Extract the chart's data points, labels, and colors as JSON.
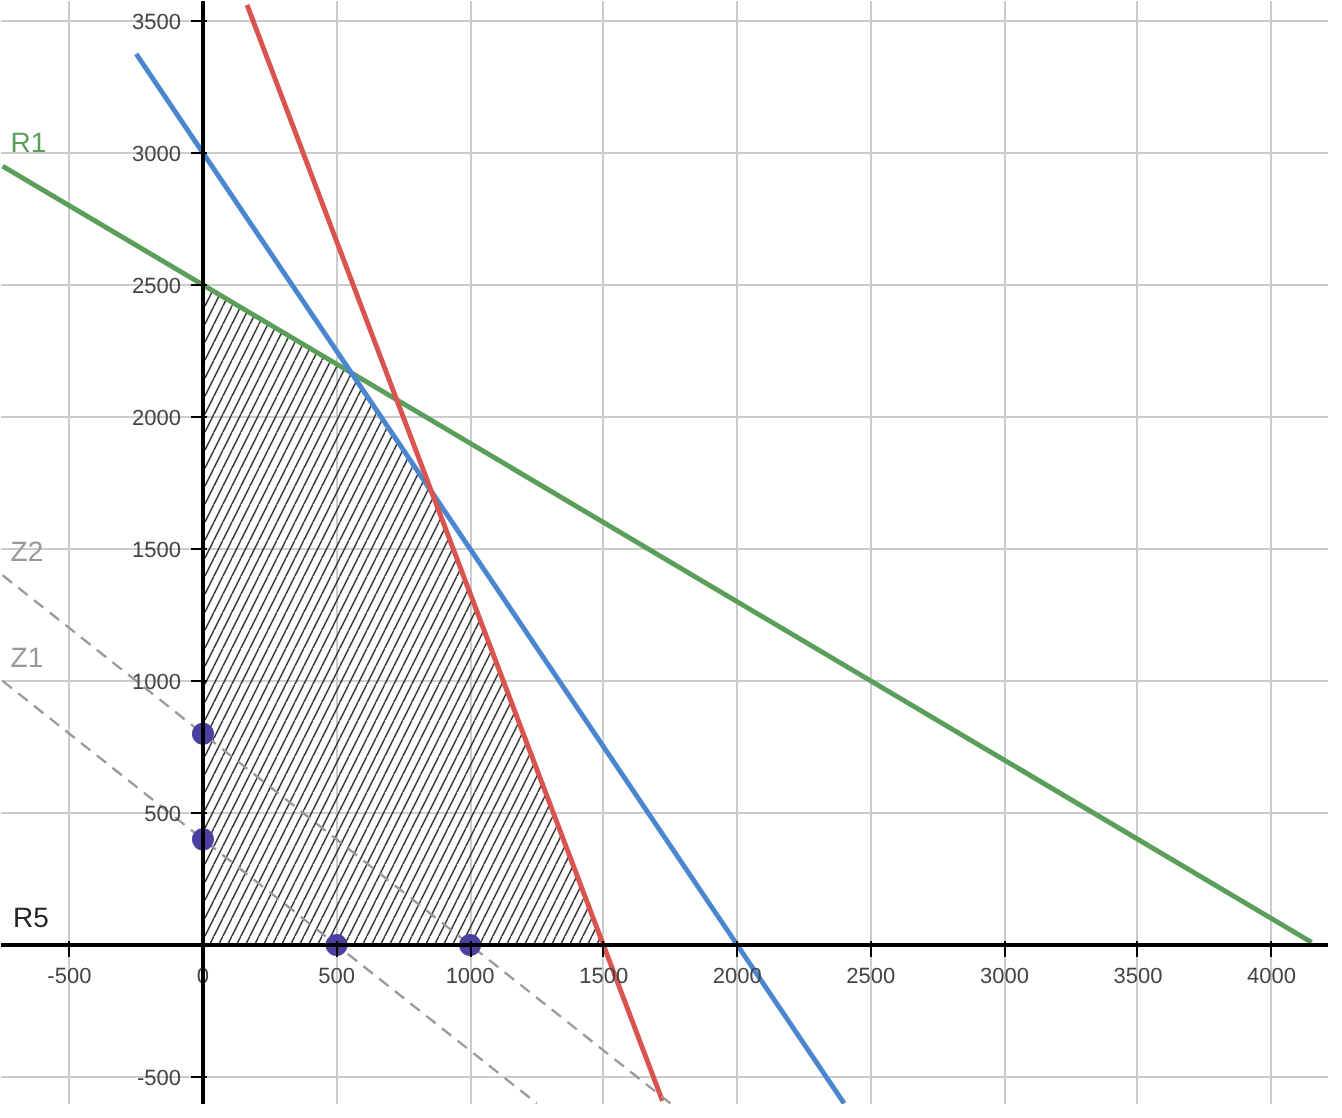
{
  "chart_data": {
    "type": "line",
    "xlim": [
      -756,
      4215
    ],
    "ylim": [
      -606,
      3575
    ],
    "xticks": [
      -500,
      0,
      500,
      1000,
      1500,
      2000,
      2500,
      3000,
      3500,
      4000
    ],
    "yticks": [
      -500,
      500,
      1000,
      1500,
      2000,
      2500,
      3000,
      3500
    ],
    "grid": true,
    "series": [
      {
        "type": "area",
        "color": "#333333",
        "x": [
          0,
          555.6,
          857.1,
          1500
        ],
        "values": [
          2500,
          2170,
          1710,
          0
        ]
      },
      {
        "name": "R1",
        "color": "#5a9e5a",
        "x": [
          -750,
          4150
        ],
        "values": [
          2950,
          10
        ]
      },
      {
        "color": "#4a86d0",
        "x": [
          -250,
          2400
        ],
        "values": [
          3375,
          -600
        ]
      },
      {
        "color": "#d9534f",
        "x": [
          165,
          1720
        ],
        "values": [
          3560,
          -590
        ]
      },
      {
        "name": "Z1",
        "color": "#999999",
        "line_style": "dashed",
        "x": [
          -750,
          1250
        ],
        "values": [
          1000,
          -600
        ]
      },
      {
        "name": "Z2",
        "color": "#999999",
        "line_style": "dashed",
        "x": [
          -750,
          1750
        ],
        "values": [
          1400,
          -600
        ]
      },
      {
        "type": "scatter",
        "color": "#4b3fa0",
        "marker": "circle",
        "x": [
          0,
          0,
          500,
          1000
        ],
        "values": [
          400,
          800,
          0,
          0
        ]
      }
    ],
    "annotations": [
      "R5"
    ]
  }
}
